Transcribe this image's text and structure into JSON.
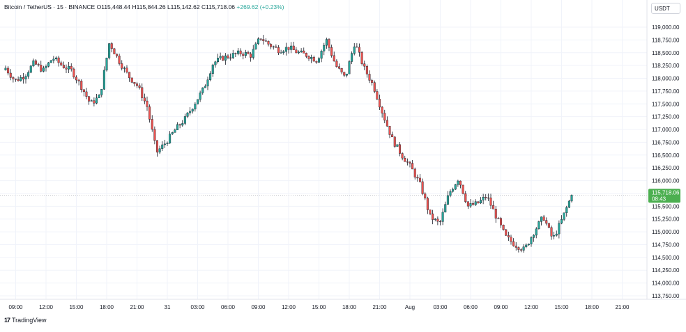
{
  "header": {
    "symbol": "Bitcoin / TetherUS · 15 · BINANCE",
    "open": "O115,448.44",
    "high": "H115,844.26",
    "low": "L115,142.62",
    "close": "C115,718.06",
    "change": "+269.62 (+0.23%)"
  },
  "currency": "USDT",
  "footer": {
    "brand": "TradingView",
    "brand_icon": "tradingview-logo-icon"
  },
  "colors": {
    "up": "#26a69a",
    "down": "#ef5350",
    "price_tag": "#4caf50",
    "wick": "#131722"
  },
  "chart_data": {
    "type": "candlestick",
    "ylim": [
      113750,
      119250
    ],
    "y_ticks": [
      "119,000.00",
      "118,750.00",
      "118,500.00",
      "118,250.00",
      "118,000.00",
      "117,750.00",
      "117,500.00",
      "117,250.00",
      "117,000.00",
      "116,750.00",
      "116,500.00",
      "116,250.00",
      "116,000.00",
      "115,750.00",
      "115,500.00",
      "115,250.00",
      "115,000.00",
      "114,750.00",
      "114,500.00",
      "114,250.00",
      "114,000.00",
      "113,750.00"
    ],
    "y_tick_values": [
      119000,
      118750,
      118500,
      118250,
      118000,
      117750,
      117500,
      117250,
      117000,
      116750,
      116500,
      116250,
      116000,
      115750,
      115500,
      115250,
      115000,
      114750,
      114500,
      114250,
      114000,
      113750
    ],
    "x_ticks": [
      {
        "label": "09:00",
        "bar": 4
      },
      {
        "label": "12:00",
        "bar": 16
      },
      {
        "label": "15:00",
        "bar": 28
      },
      {
        "label": "18:00",
        "bar": 40
      },
      {
        "label": "21:00",
        "bar": 52
      },
      {
        "label": "31",
        "bar": 64
      },
      {
        "label": "03:00",
        "bar": 76
      },
      {
        "label": "06:00",
        "bar": 88
      },
      {
        "label": "09:00",
        "bar": 100
      },
      {
        "label": "12:00",
        "bar": 112
      },
      {
        "label": "15:00",
        "bar": 124
      },
      {
        "label": "18:00",
        "bar": 136
      },
      {
        "label": "21:00",
        "bar": 148
      },
      {
        "label": "Aug",
        "bar": 160
      },
      {
        "label": "03:00",
        "bar": 172
      },
      {
        "label": "06:00",
        "bar": 184
      },
      {
        "label": "09:00",
        "bar": 196
      },
      {
        "label": "12:00",
        "bar": 208
      },
      {
        "label": "15:00",
        "bar": 220
      },
      {
        "label": "18:00",
        "bar": 232
      },
      {
        "label": "21:00",
        "bar": 244
      }
    ],
    "last_price_label": "115,718.06",
    "countdown_label": "08:43",
    "last_price": 115718.06,
    "key_closes": [
      118200,
      117950,
      118050,
      118300,
      118150,
      118400,
      118250,
      118150,
      117850,
      117500,
      117650,
      118700,
      118350,
      118050,
      117850,
      117450,
      116550,
      116750,
      117000,
      117200,
      117500,
      117800,
      118300,
      118400,
      118450,
      118500,
      118450,
      118800,
      118650,
      118550,
      118600,
      118500,
      118450,
      118350,
      118750,
      118250,
      118000,
      118700,
      118200,
      117850,
      117300,
      116800,
      116500,
      116250,
      115900,
      115300,
      115150,
      115750,
      116050,
      115500,
      115550,
      115700,
      115300,
      114900,
      114750,
      114650,
      115000,
      115300,
      114850,
      115250,
      115718.06
    ],
    "bar_count": 225
  }
}
